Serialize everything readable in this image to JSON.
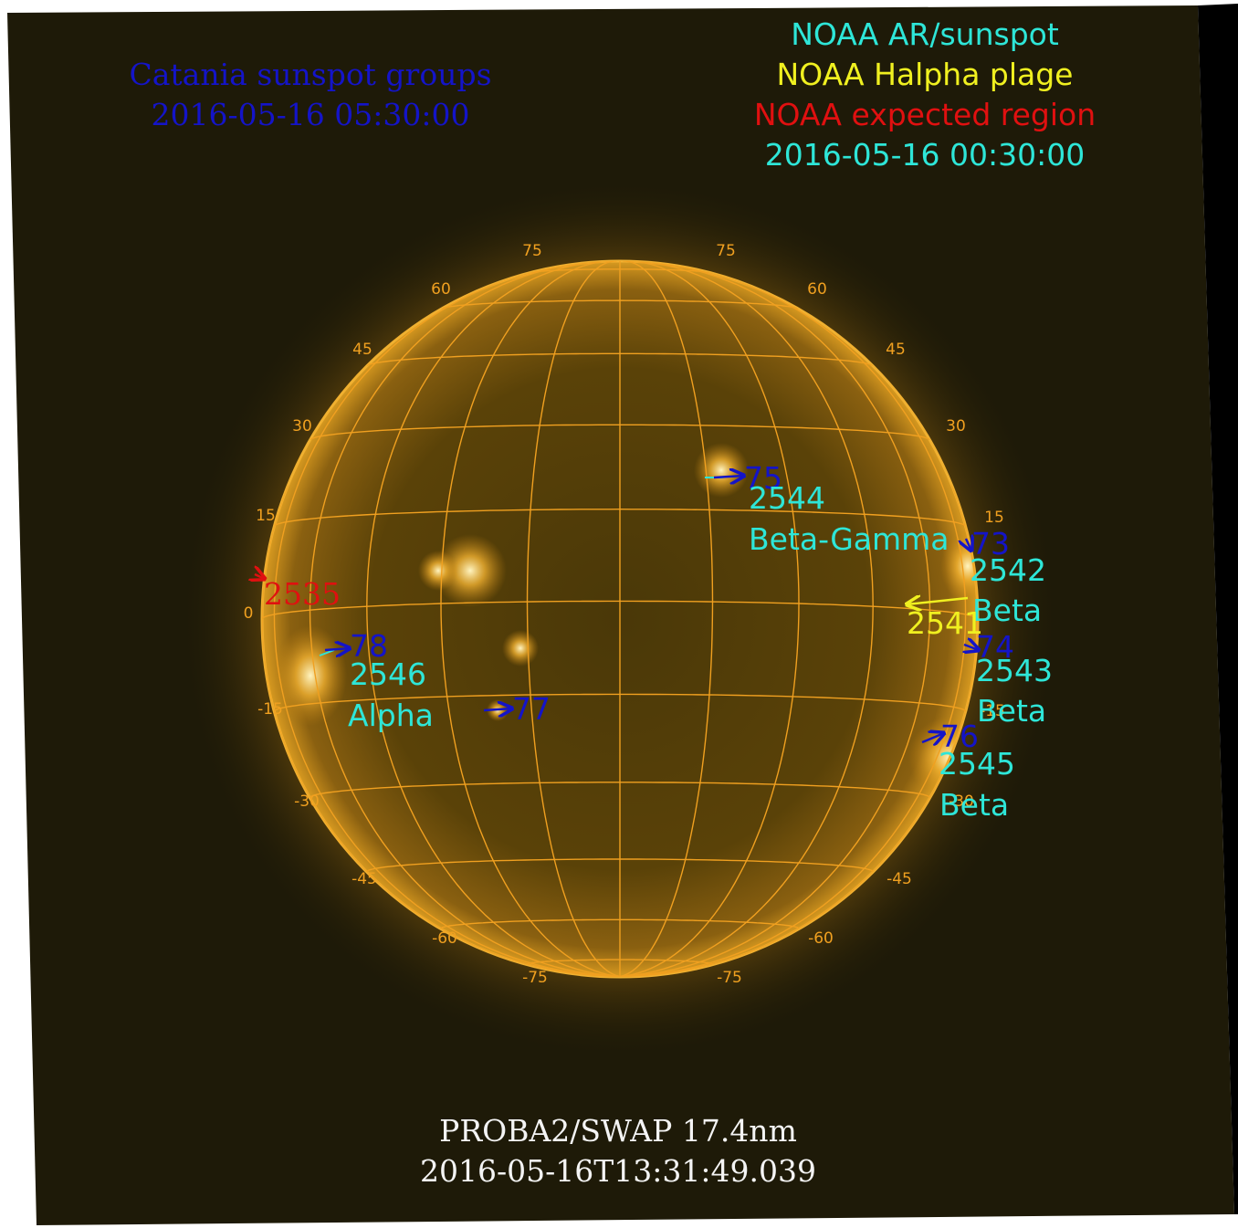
{
  "catania": {
    "title": "Catania sunspot groups",
    "time": "2016-05-16 05:30:00",
    "color": "#1414c8"
  },
  "legend": {
    "ar": "NOAA AR/sunspot",
    "plage": "NOAA Halpha plage",
    "expected": "NOAA expected region",
    "time": "2016-05-16 00:30:00",
    "ar_color": "#2ee6d8",
    "plage_color": "#f0f020",
    "expected_color": "#e01010"
  },
  "footer": {
    "instrument": "PROBA2/SWAP 17.4nm",
    "timestamp": "2016-05-16T13:31:49.039"
  },
  "grid": {
    "latitude_labels": [
      "75",
      "60",
      "45",
      "30",
      "15",
      "0",
      "-15",
      "-30",
      "-45",
      "-60",
      "-75"
    ],
    "color": "#f0a020"
  },
  "regions": {
    "catania": [
      "75",
      "73",
      "74",
      "76",
      "77",
      "78"
    ],
    "noaa_ar": [
      {
        "number": "2544",
        "class": "Beta-Gamma"
      },
      {
        "number": "2542",
        "class": "Beta"
      },
      {
        "number": "2543",
        "class": "Beta"
      },
      {
        "number": "2545",
        "class": "Beta"
      },
      {
        "number": "2546",
        "class": "Alpha"
      }
    ],
    "plage": [
      "2541"
    ],
    "expected": [
      "2535"
    ]
  }
}
